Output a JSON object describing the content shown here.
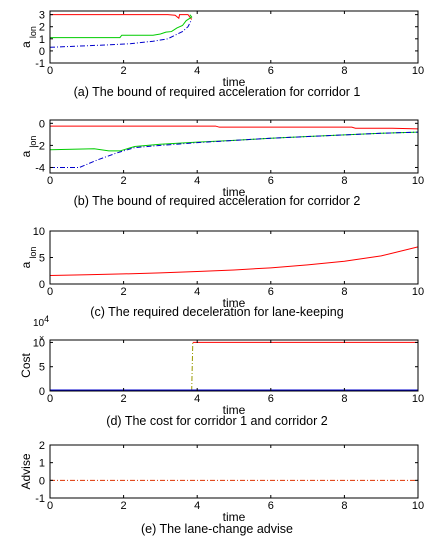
{
  "chart_data": [
    {
      "type": "line",
      "caption": "(a) The bound of required acceleration for corridor 1",
      "xlabel": "time",
      "ylabel": "a",
      "ylabel_sub": "lon",
      "xlim": [
        0,
        10
      ],
      "ylim": [
        -1,
        3.3
      ],
      "xticks": [
        "0",
        "2",
        "4",
        "6",
        "8",
        "10"
      ],
      "xtick_values": [
        0,
        2,
        4,
        6,
        8,
        10
      ],
      "yticks": [
        "-1",
        "0",
        "1",
        "2",
        "3"
      ],
      "ytick_values": [
        -1,
        0,
        1,
        2,
        3
      ],
      "series": [
        {
          "color": "#ff0000",
          "dash": "",
          "points": [
            [
              0,
              3
            ],
            [
              3.2,
              3
            ],
            [
              3.4,
              2.95
            ],
            [
              3.5,
              2.7
            ],
            [
              3.52,
              3
            ],
            [
              3.75,
              3
            ],
            [
              3.85,
              2.6
            ]
          ]
        },
        {
          "color": "#00cc00",
          "dash": "",
          "points": [
            [
              0,
              1.1
            ],
            [
              1.9,
              1.1
            ],
            [
              1.95,
              1.3
            ],
            [
              2.8,
              1.3
            ],
            [
              3.0,
              1.4
            ],
            [
              3.15,
              1.55
            ],
            [
              3.3,
              1.6
            ],
            [
              3.45,
              1.9
            ],
            [
              3.6,
              2.1
            ],
            [
              3.7,
              2.5
            ],
            [
              3.85,
              2.8
            ],
            [
              3.8,
              3.0
            ]
          ]
        },
        {
          "color": "#0000cc",
          "dash": "5 2 1 2",
          "points": [
            [
              0,
              0.3
            ],
            [
              0.8,
              0.4
            ],
            [
              1.6,
              0.5
            ],
            [
              2.2,
              0.6
            ],
            [
              2.8,
              0.8
            ],
            [
              3.2,
              1.0
            ],
            [
              3.4,
              1.3
            ],
            [
              3.6,
              1.6
            ],
            [
              3.75,
              2.0
            ],
            [
              3.85,
              2.6
            ]
          ]
        }
      ]
    },
    {
      "type": "line",
      "caption": "(b) The bound of required acceleration for corridor 2",
      "xlabel": "time",
      "ylabel": "a",
      "ylabel_sub": "lon",
      "xlim": [
        0,
        10
      ],
      "ylim": [
        -4.5,
        0.3
      ],
      "xticks": [
        "0",
        "2",
        "4",
        "6",
        "8",
        "10"
      ],
      "xtick_values": [
        0,
        2,
        4,
        6,
        8,
        10
      ],
      "yticks": [
        "-4",
        "-2",
        "0"
      ],
      "ytick_values": [
        -4,
        -2,
        0
      ],
      "series": [
        {
          "color": "#ff0000",
          "dash": "",
          "points": [
            [
              0,
              -0.25
            ],
            [
              4.5,
              -0.25
            ],
            [
              4.6,
              -0.35
            ],
            [
              8.2,
              -0.35
            ],
            [
              8.3,
              -0.45
            ],
            [
              9.3,
              -0.45
            ],
            [
              10,
              -0.5
            ]
          ]
        },
        {
          "color": "#00cc00",
          "dash": "",
          "points": [
            [
              0,
              -2.4
            ],
            [
              1.2,
              -2.3
            ],
            [
              1.6,
              -2.5
            ],
            [
              1.9,
              -2.5
            ],
            [
              2.3,
              -2.1
            ],
            [
              3,
              -1.9
            ],
            [
              4,
              -1.7
            ],
            [
              5,
              -1.55
            ],
            [
              6,
              -1.35
            ],
            [
              7,
              -1.2
            ],
            [
              8,
              -1.05
            ],
            [
              9,
              -0.9
            ],
            [
              10,
              -0.8
            ]
          ]
        },
        {
          "color": "#0000cc",
          "dash": "5 2 1 2",
          "points": [
            [
              0,
              -4.0
            ],
            [
              0.8,
              -4.0
            ],
            [
              1.3,
              -3.3
            ],
            [
              1.8,
              -2.7
            ],
            [
              2.3,
              -2.2
            ],
            [
              3,
              -2.0
            ],
            [
              4,
              -1.75
            ],
            [
              5,
              -1.55
            ],
            [
              6,
              -1.35
            ],
            [
              7,
              -1.2
            ],
            [
              8,
              -1.05
            ],
            [
              9,
              -0.9
            ],
            [
              10,
              -0.8
            ]
          ]
        }
      ]
    },
    {
      "type": "line",
      "caption": "(c) The required deceleration for lane-keeping",
      "xlabel": "time",
      "ylabel": "a",
      "ylabel_sub": "lon",
      "xlim": [
        0,
        10
      ],
      "ylim": [
        0,
        10
      ],
      "xticks": [
        "0",
        "2",
        "4",
        "6",
        "8",
        "10"
      ],
      "xtick_values": [
        0,
        2,
        4,
        6,
        8,
        10
      ],
      "yticks": [
        "0",
        "5",
        "10"
      ],
      "ytick_values": [
        0,
        5,
        10
      ],
      "series": [
        {
          "color": "#ff0000",
          "dash": "",
          "points": [
            [
              0,
              1.6
            ],
            [
              1,
              1.75
            ],
            [
              2,
              1.9
            ],
            [
              3,
              2.1
            ],
            [
              4,
              2.35
            ],
            [
              5,
              2.65
            ],
            [
              6,
              3.05
            ],
            [
              7,
              3.6
            ],
            [
              8,
              4.3
            ],
            [
              9,
              5.3
            ],
            [
              10,
              7.0
            ]
          ]
        }
      ]
    },
    {
      "type": "line",
      "caption": "(d) The cost for corridor 1 and corridor 2",
      "xlabel": "time",
      "ylabel": "Cost",
      "ylabel_sub": "",
      "exponent_label": "10",
      "exponent_power": "4",
      "corner_mark": "×",
      "xlim": [
        0,
        10
      ],
      "ylim": [
        0,
        10.5
      ],
      "xticks": [
        "0",
        "2",
        "4",
        "6",
        "8",
        "10"
      ],
      "xtick_values": [
        0,
        2,
        4,
        6,
        8,
        10
      ],
      "yticks": [
        "0",
        "5",
        "10"
      ],
      "ytick_values": [
        0,
        5,
        10
      ],
      "series": [
        {
          "color": "#ff0000",
          "dash": "",
          "points": [
            [
              3.88,
              10
            ],
            [
              10,
              10
            ]
          ]
        },
        {
          "color": "#999900",
          "dash": "5 2 1 2",
          "points": [
            [
              3.85,
              0
            ],
            [
              3.88,
              10
            ]
          ]
        },
        {
          "color": "#0000cc",
          "dash": "",
          "points": [
            [
              0,
              0.2
            ],
            [
              10,
              0.2
            ]
          ]
        }
      ]
    },
    {
      "type": "line",
      "caption": "(e) The lane-change advise",
      "xlabel": "time",
      "ylabel": "Advise",
      "ylabel_sub": "",
      "xlim": [
        0,
        10
      ],
      "ylim": [
        -1,
        2
      ],
      "xticks": [
        "0",
        "2",
        "4",
        "6",
        "8",
        "10"
      ],
      "xtick_values": [
        0,
        2,
        4,
        6,
        8,
        10
      ],
      "yticks": [
        "-1",
        "0",
        "1",
        "2"
      ],
      "ytick_values": [
        -1,
        0,
        1,
        2
      ],
      "series": [
        {
          "color": "#dd3300",
          "dash": "5 2 1 2",
          "points": [
            [
              0,
              0
            ],
            [
              10,
              0
            ]
          ]
        }
      ]
    }
  ]
}
